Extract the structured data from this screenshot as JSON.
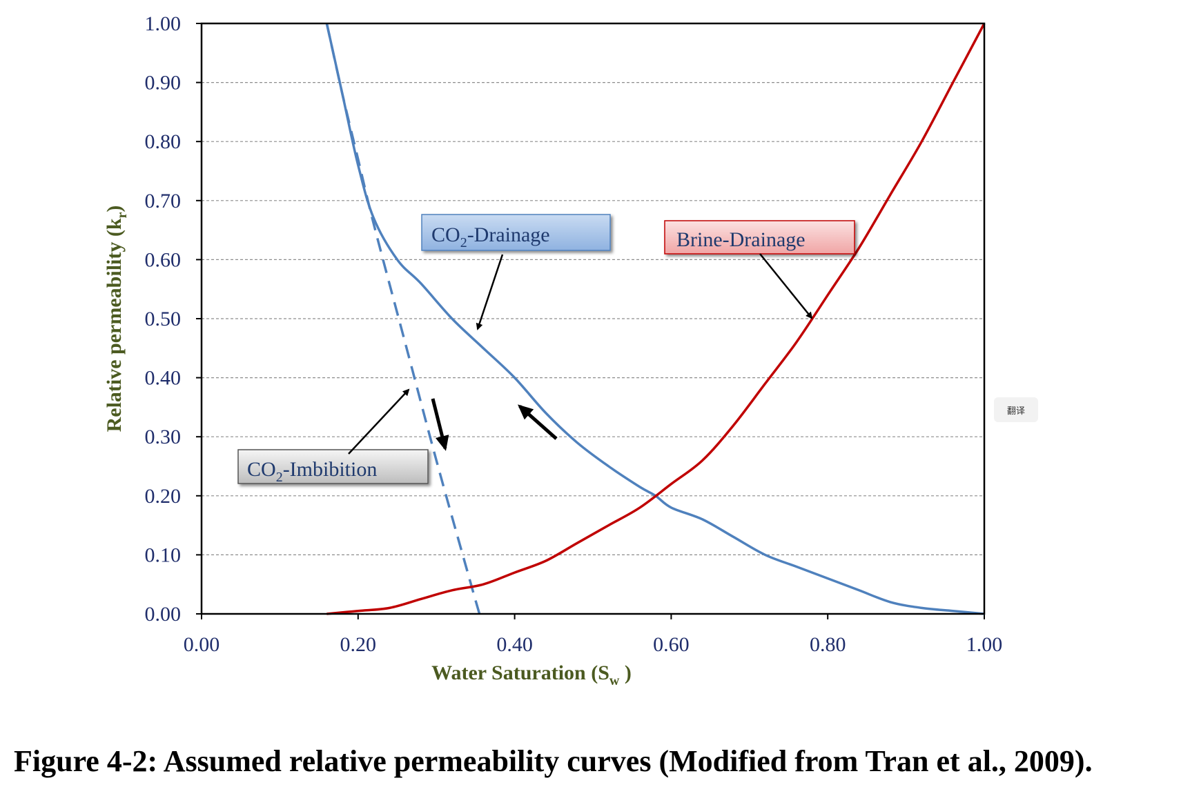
{
  "chart_data": {
    "type": "line",
    "xlabel": "Water Saturation (Sw )",
    "ylabel": "Relative permeability (kr)",
    "xlim": [
      0,
      1
    ],
    "ylim": [
      0,
      1
    ],
    "xticks": [
      "0.00",
      "0.20",
      "0.40",
      "0.60",
      "0.80",
      "1.00"
    ],
    "yticks": [
      "0.00",
      "0.10",
      "0.20",
      "0.30",
      "0.40",
      "0.50",
      "0.60",
      "0.70",
      "0.80",
      "0.90",
      "1.00"
    ],
    "grid": "horizontal dashed",
    "series": [
      {
        "name": "CO2-Drainage",
        "color": "#4f81bd",
        "style": "solid",
        "x": [
          0.16,
          0.18,
          0.2,
          0.22,
          0.25,
          0.28,
          0.32,
          0.36,
          0.4,
          0.44,
          0.48,
          0.52,
          0.56,
          0.58,
          0.6,
          0.64,
          0.68,
          0.72,
          0.76,
          0.8,
          0.84,
          0.88,
          0.92,
          0.96,
          1.0
        ],
        "y": [
          1.0,
          0.88,
          0.76,
          0.67,
          0.6,
          0.56,
          0.5,
          0.45,
          0.4,
          0.34,
          0.29,
          0.25,
          0.215,
          0.2,
          0.18,
          0.16,
          0.13,
          0.1,
          0.08,
          0.06,
          0.04,
          0.02,
          0.01,
          0.005,
          0.0
        ]
      },
      {
        "name": "CO2-Imbibition",
        "color": "#4f81bd",
        "style": "dashed",
        "x": [
          0.16,
          0.18,
          0.2,
          0.22,
          0.26,
          0.3,
          0.34,
          0.355
        ],
        "y": [
          1.0,
          0.88,
          0.77,
          0.66,
          0.46,
          0.26,
          0.07,
          0.0
        ]
      },
      {
        "name": "Brine-Drainage",
        "color": "#c00000",
        "style": "solid",
        "x": [
          0.16,
          0.2,
          0.24,
          0.28,
          0.32,
          0.36,
          0.4,
          0.44,
          0.48,
          0.52,
          0.56,
          0.6,
          0.64,
          0.68,
          0.72,
          0.76,
          0.8,
          0.84,
          0.88,
          0.92,
          0.96,
          1.0
        ],
        "y": [
          0.0,
          0.005,
          0.01,
          0.025,
          0.04,
          0.05,
          0.07,
          0.09,
          0.12,
          0.15,
          0.18,
          0.22,
          0.26,
          0.32,
          0.39,
          0.46,
          0.54,
          0.62,
          0.71,
          0.8,
          0.9,
          1.0
        ]
      }
    ],
    "annotations": [
      {
        "id": "co2-drainage",
        "text": "CO2-Drainage"
      },
      {
        "id": "brine-drainage",
        "text": "Brine-Drainage"
      },
      {
        "id": "co2-imbibition",
        "text": "CO2-Imbibition"
      }
    ]
  },
  "caption": "Figure 4-2: Assumed relative permeability curves (Modified from Tran et al., 2009).",
  "translate_button": "翻译",
  "labels": {
    "co2_prefix": "CO",
    "subscript_2": "2",
    "drainage_suffix": "-Drainage",
    "imbibition_suffix": "-Imbibition",
    "brine_drainage": "Brine-Drainage",
    "x_title_main": "Water Saturation (S",
    "x_title_sub": "w",
    "x_title_end": " )",
    "y_title_main": "Relative permeability (k",
    "y_title_sub": "r",
    "y_title_end": ")"
  }
}
